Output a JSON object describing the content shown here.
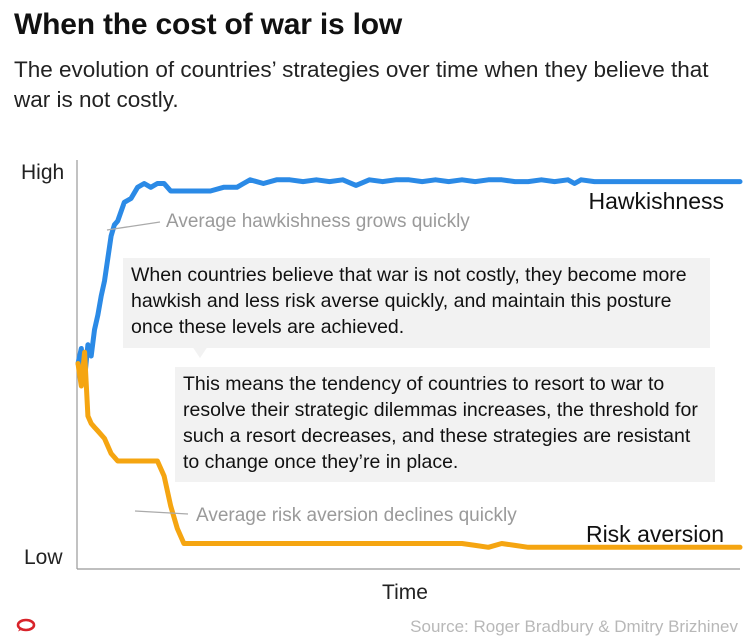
{
  "header": {
    "title": "When the cost of war is low",
    "subtitle": "The evolution of countries’ strategies over time when they believe that war is not costly."
  },
  "callouts": {
    "first": "When countries believe that war is not costly, they become more hawkish and less risk averse quickly, and maintain this posture once these levels are achieved.",
    "second": "This means the tendency of countries to resort to war to resolve their strategic dilemmas increases, the threshold for such a resort decreases, and these strategies are resistant to change once they’re in place."
  },
  "source": "Source: Roger Bradbury & Dmitry Brizhinev",
  "colors": {
    "hawkishness": "#2b8ae6",
    "risk_aversion": "#f5a511",
    "annotation": "#9a9a9a",
    "callout_bg": "#f2f2f2"
  },
  "logo": {
    "icon": "conversation-logo-icon",
    "color": "#d8232a"
  },
  "chart_data": {
    "type": "line",
    "title": "When the cost of war is low",
    "xlabel": "Time",
    "ylabel": "",
    "y_tick_labels": {
      "high": "High",
      "low": "Low"
    },
    "xlim": [
      0,
      100
    ],
    "ylim": [
      0,
      1
    ],
    "grid": false,
    "series": [
      {
        "name": "Hawkishness",
        "x": [
          0,
          0.5,
          1,
          1.5,
          2,
          2.5,
          3,
          3.5,
          4,
          4.5,
          5,
          5.5,
          6,
          7,
          8,
          9,
          10,
          11,
          12,
          13,
          14,
          16,
          18,
          20,
          22,
          24,
          25,
          26,
          28,
          30,
          32,
          34,
          36,
          38,
          40,
          42,
          44,
          46,
          48,
          50,
          52,
          54,
          56,
          58,
          60,
          62,
          64,
          66,
          68,
          70,
          72,
          74,
          75,
          76,
          78,
          80,
          85,
          90,
          95,
          100
        ],
        "values": [
          0.5,
          0.54,
          0.46,
          0.55,
          0.52,
          0.59,
          0.63,
          0.68,
          0.72,
          0.78,
          0.84,
          0.87,
          0.88,
          0.93,
          0.94,
          0.97,
          0.98,
          0.97,
          0.98,
          0.98,
          0.96,
          0.96,
          0.96,
          0.96,
          0.97,
          0.97,
          0.98,
          0.99,
          0.98,
          0.99,
          0.99,
          0.985,
          0.99,
          0.985,
          0.99,
          0.975,
          0.99,
          0.985,
          0.99,
          0.99,
          0.985,
          0.99,
          0.985,
          0.99,
          0.985,
          0.99,
          0.99,
          0.985,
          0.985,
          0.99,
          0.985,
          0.99,
          0.98,
          0.99,
          0.985,
          0.985,
          0.985,
          0.985,
          0.985,
          0.985
        ]
      },
      {
        "name": "Risk aversion",
        "x": [
          0,
          0.5,
          1,
          1.5,
          2,
          2.5,
          3,
          4,
          5,
          6,
          7,
          8,
          9,
          10,
          11,
          12,
          13,
          14,
          15,
          16,
          18,
          20,
          25,
          30,
          35,
          40,
          45,
          50,
          55,
          58,
          60,
          62,
          64,
          66,
          68,
          70,
          75,
          80,
          85,
          90,
          95,
          100
        ],
        "values": [
          0.5,
          0.44,
          0.53,
          0.36,
          0.34,
          0.33,
          0.32,
          0.3,
          0.26,
          0.24,
          0.24,
          0.24,
          0.24,
          0.24,
          0.24,
          0.24,
          0.2,
          0.12,
          0.06,
          0.02,
          0.02,
          0.02,
          0.02,
          0.02,
          0.02,
          0.02,
          0.02,
          0.02,
          0.02,
          0.02,
          0.015,
          0.01,
          0.02,
          0.015,
          0.01,
          0.01,
          0.01,
          0.01,
          0.01,
          0.01,
          0.01,
          0.01
        ]
      }
    ],
    "annotations": {
      "hawkishness": "Average hawkishness grows quickly",
      "risk_aversion": "Average risk aversion declines quickly"
    }
  }
}
